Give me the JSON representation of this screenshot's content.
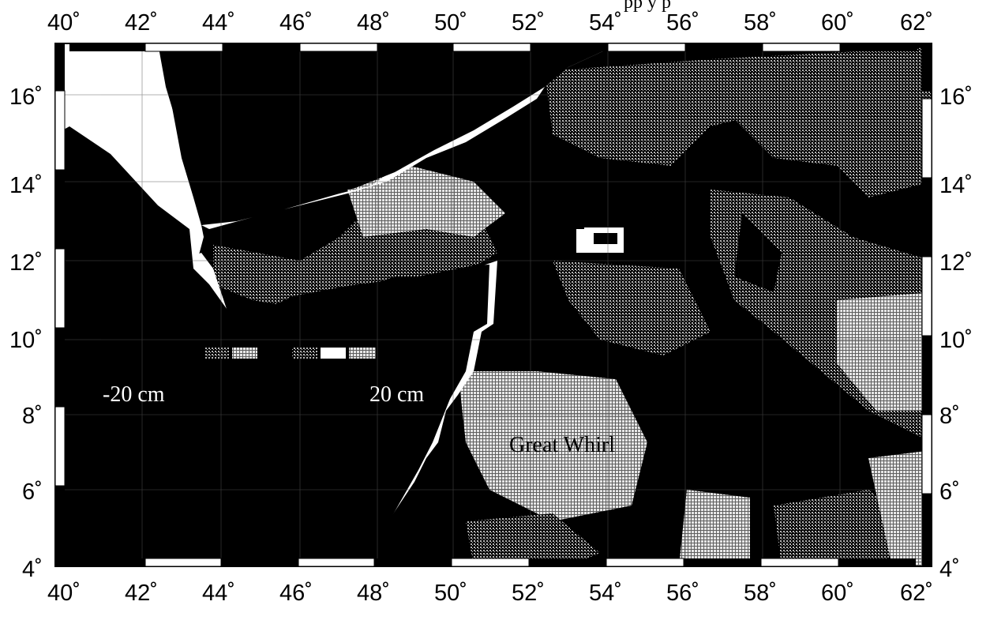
{
  "map": {
    "title_fragment": "pp                    y      p",
    "lon_ticks": [
      "40˚",
      "42˚",
      "44˚",
      "46˚",
      "48˚",
      "50˚",
      "52˚",
      "54˚",
      "56˚",
      "58˚",
      "60˚",
      "62˚"
    ],
    "lat_ticks": [
      "4˚",
      "6˚",
      "8˚",
      "10˚",
      "12˚",
      "14˚",
      "16˚"
    ],
    "lon_range": [
      40,
      62
    ],
    "lat_range": [
      4,
      17
    ],
    "colorbar_labels": {
      "left": "-20 cm",
      "right": "20 cm"
    },
    "feature_labels": {
      "gyre": "Great Whirl"
    },
    "colors": {
      "land": "#ffffff",
      "ocean": "#000000",
      "mid": "#8a8a8a"
    }
  }
}
